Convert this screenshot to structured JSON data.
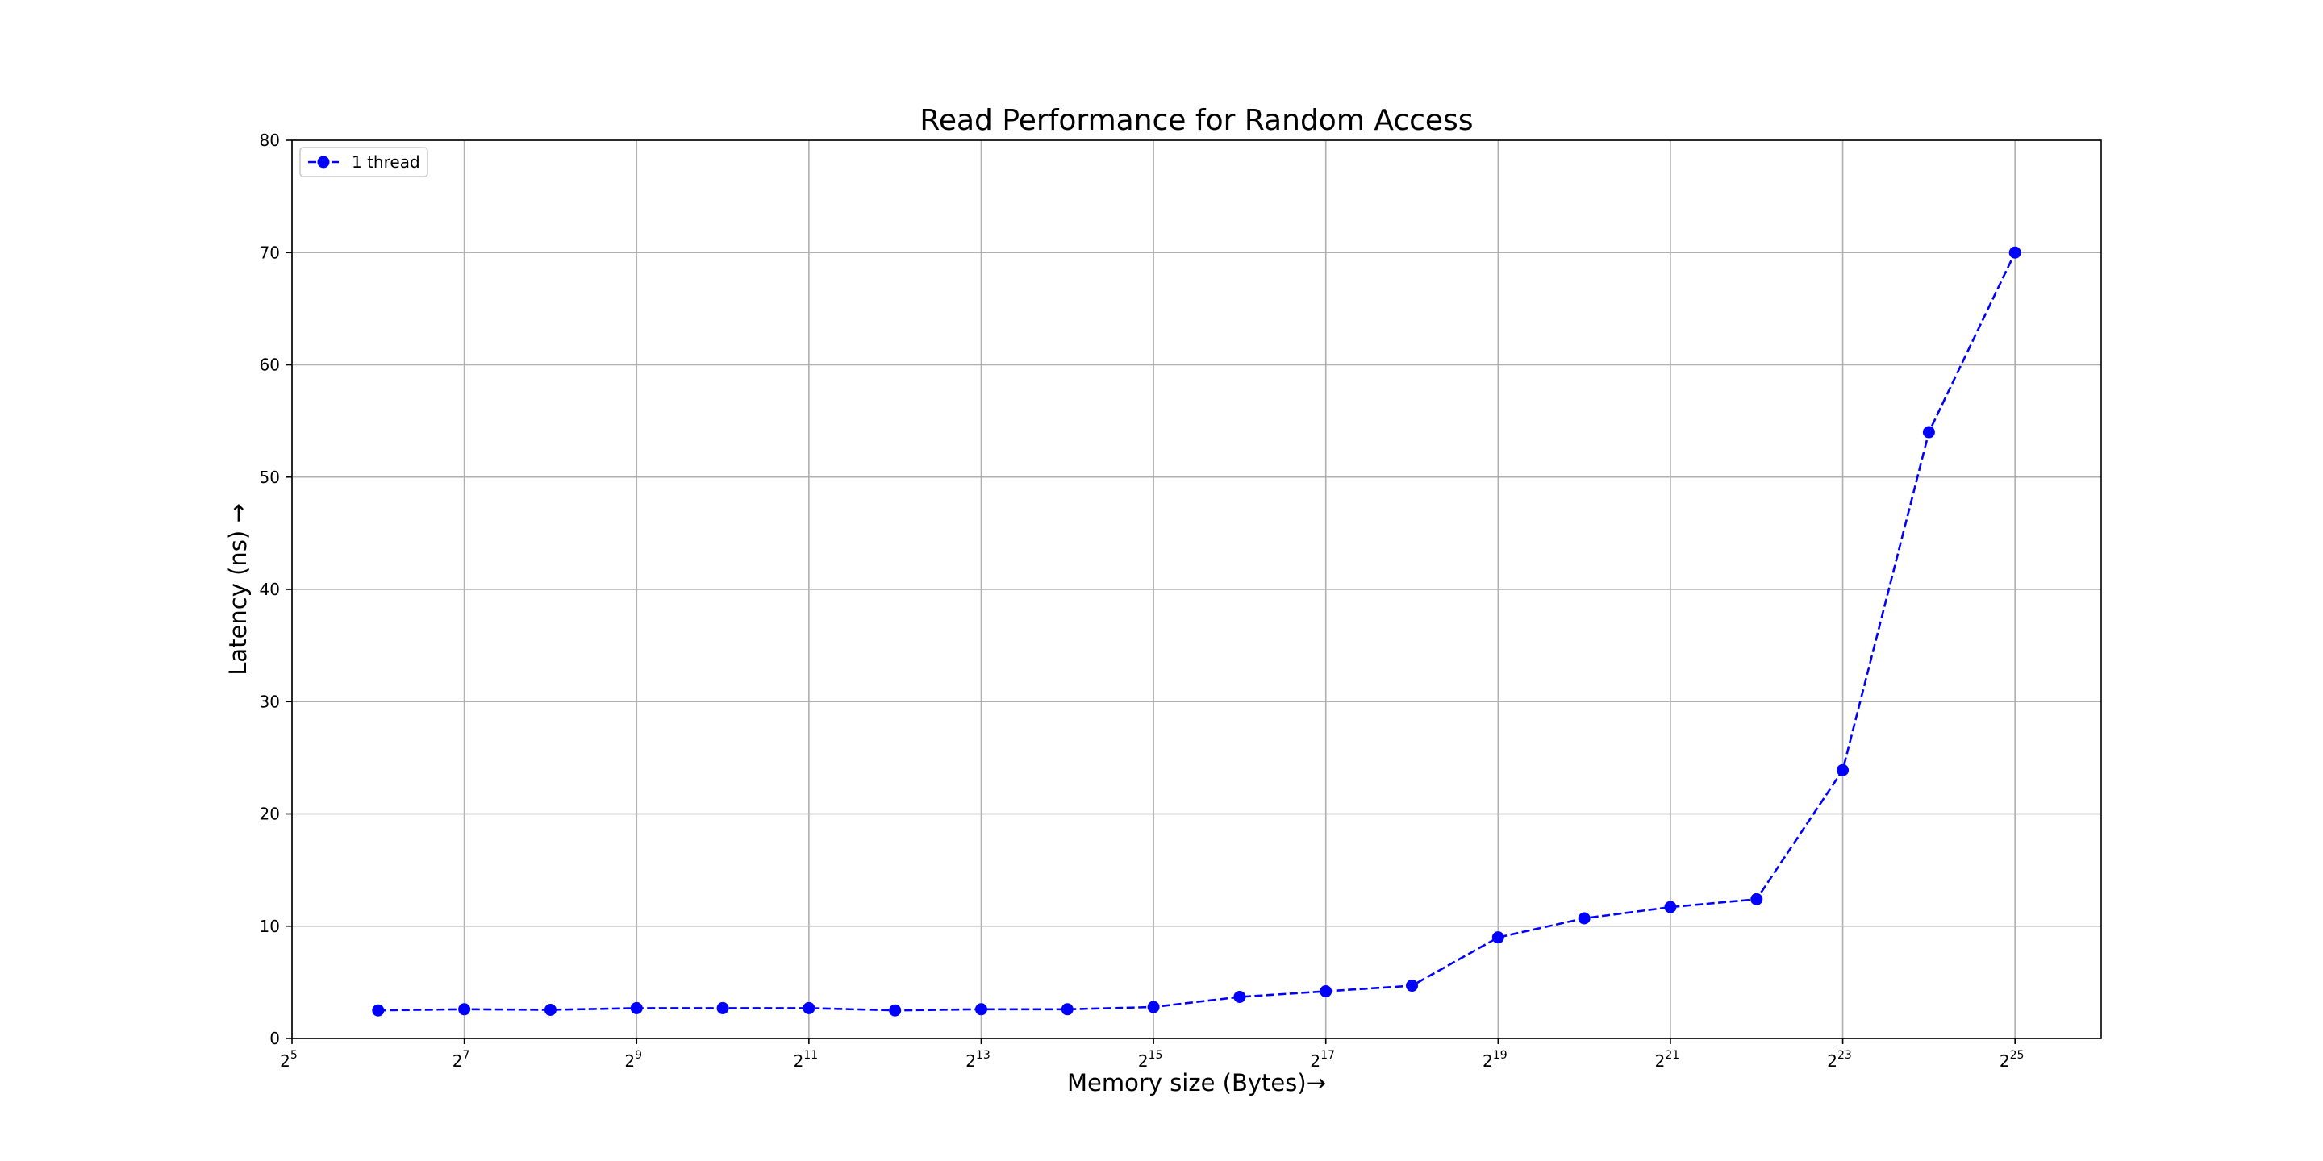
{
  "chart_data": {
    "type": "line",
    "title": "Read Performance for Random Access",
    "xlabel": "Memory size (Bytes)→",
    "ylabel": "Latency (ns)  →",
    "x_scale": "log2",
    "xlim": [
      32,
      67108864
    ],
    "ylim": [
      0,
      80
    ],
    "x_ticks": [
      {
        "value": 32,
        "base": "2",
        "exp": "5"
      },
      {
        "value": 128,
        "base": "2",
        "exp": "7"
      },
      {
        "value": 512,
        "base": "2",
        "exp": "9"
      },
      {
        "value": 2048,
        "base": "2",
        "exp": "11"
      },
      {
        "value": 8192,
        "base": "2",
        "exp": "13"
      },
      {
        "value": 32768,
        "base": "2",
        "exp": "15"
      },
      {
        "value": 131072,
        "base": "2",
        "exp": "17"
      },
      {
        "value": 524288,
        "base": "2",
        "exp": "19"
      },
      {
        "value": 2097152,
        "base": "2",
        "exp": "21"
      },
      {
        "value": 8388608,
        "base": "2",
        "exp": "23"
      },
      {
        "value": 33554432,
        "base": "2",
        "exp": "25"
      }
    ],
    "y_ticks": [
      0,
      10,
      20,
      30,
      40,
      50,
      60,
      70,
      80
    ],
    "grid": true,
    "legend_position": "upper-left",
    "series": [
      {
        "name": "1 thread",
        "color": "#0000ff",
        "line_style": "dashed",
        "marker": "circle",
        "x": [
          64,
          128,
          256,
          512,
          1024,
          2048,
          4096,
          8192,
          16384,
          32768,
          65536,
          131072,
          262144,
          524288,
          1048576,
          2097152,
          4194304,
          8388608,
          16777216,
          33554432
        ],
        "y": [
          2.5,
          2.6,
          2.55,
          2.7,
          2.7,
          2.7,
          2.5,
          2.6,
          2.6,
          2.8,
          3.7,
          4.2,
          4.7,
          9.0,
          10.7,
          11.7,
          12.4,
          23.9,
          54.0,
          70.0
        ]
      }
    ]
  }
}
